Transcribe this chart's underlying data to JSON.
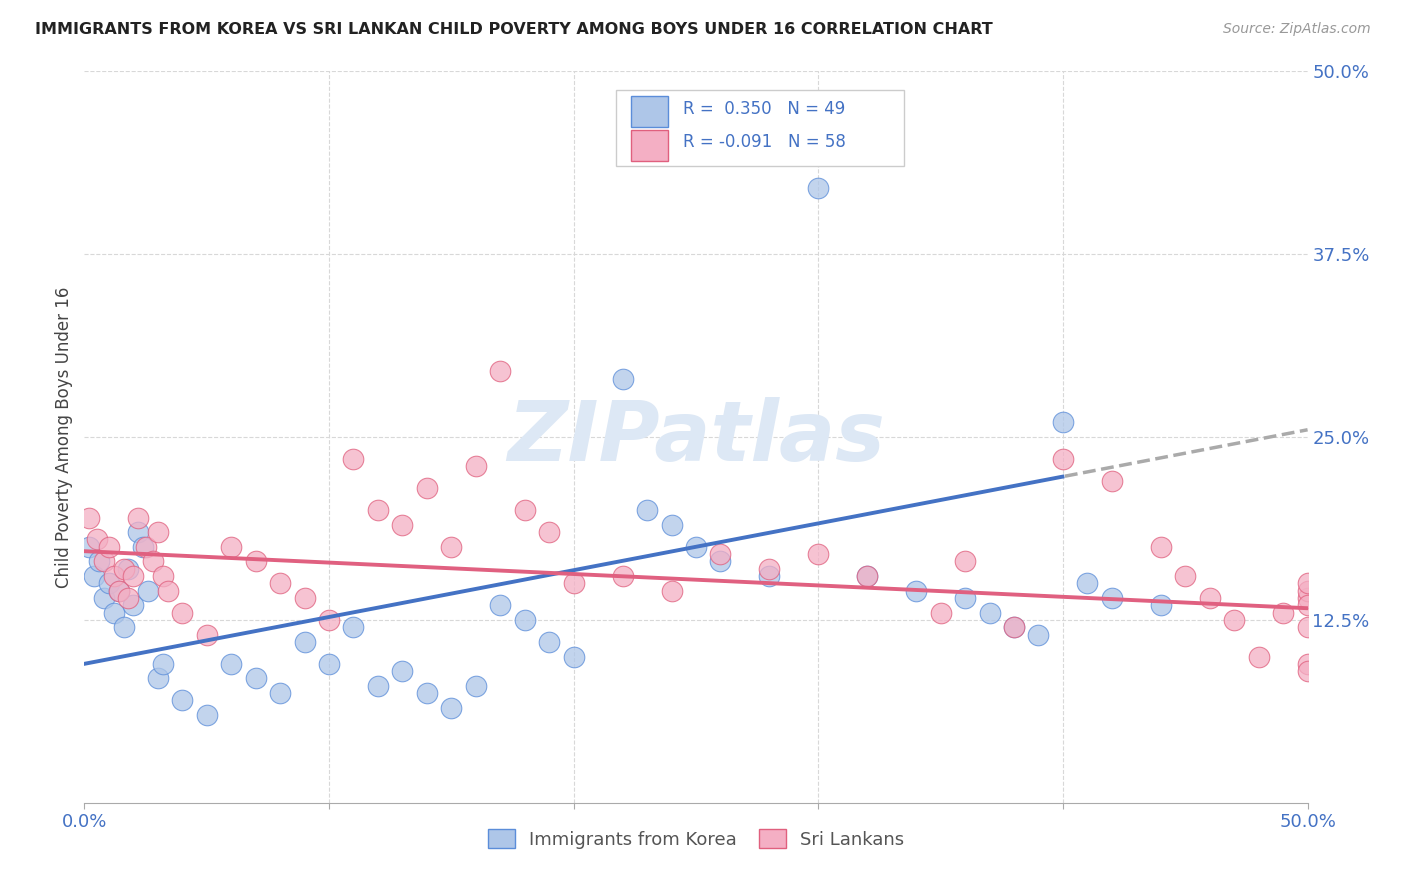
{
  "title": "IMMIGRANTS FROM KOREA VS SRI LANKAN CHILD POVERTY AMONG BOYS UNDER 16 CORRELATION CHART",
  "source": "Source: ZipAtlas.com",
  "ylabel": "Child Poverty Among Boys Under 16",
  "xlim": [
    0.0,
    0.5
  ],
  "ylim": [
    0.0,
    0.5
  ],
  "right_ytick_labels": [
    "50.0%",
    "37.5%",
    "25.0%",
    "12.5%"
  ],
  "right_ytick_values": [
    0.5,
    0.375,
    0.25,
    0.125
  ],
  "legend_label1": "Immigrants from Korea",
  "legend_label2": "Sri Lankans",
  "blue_fill": "#aec6e8",
  "blue_edge": "#5b8dd9",
  "pink_fill": "#f4afc4",
  "pink_edge": "#e0607e",
  "blue_line": "#4472c4",
  "pink_line": "#e06080",
  "dash_color": "#aaaaaa",
  "text_color": "#4472c4",
  "grid_color": "#d8d8d8",
  "watermark_color": "#dde8f5",
  "R_korea": 0.35,
  "N_korea": 49,
  "R_srilanka": -0.091,
  "N_srilanka": 58,
  "blue_line_start_y": 0.095,
  "blue_line_end_y": 0.255,
  "blue_line_solid_end_x": 0.4,
  "pink_line_start_y": 0.172,
  "pink_line_end_y": 0.133
}
